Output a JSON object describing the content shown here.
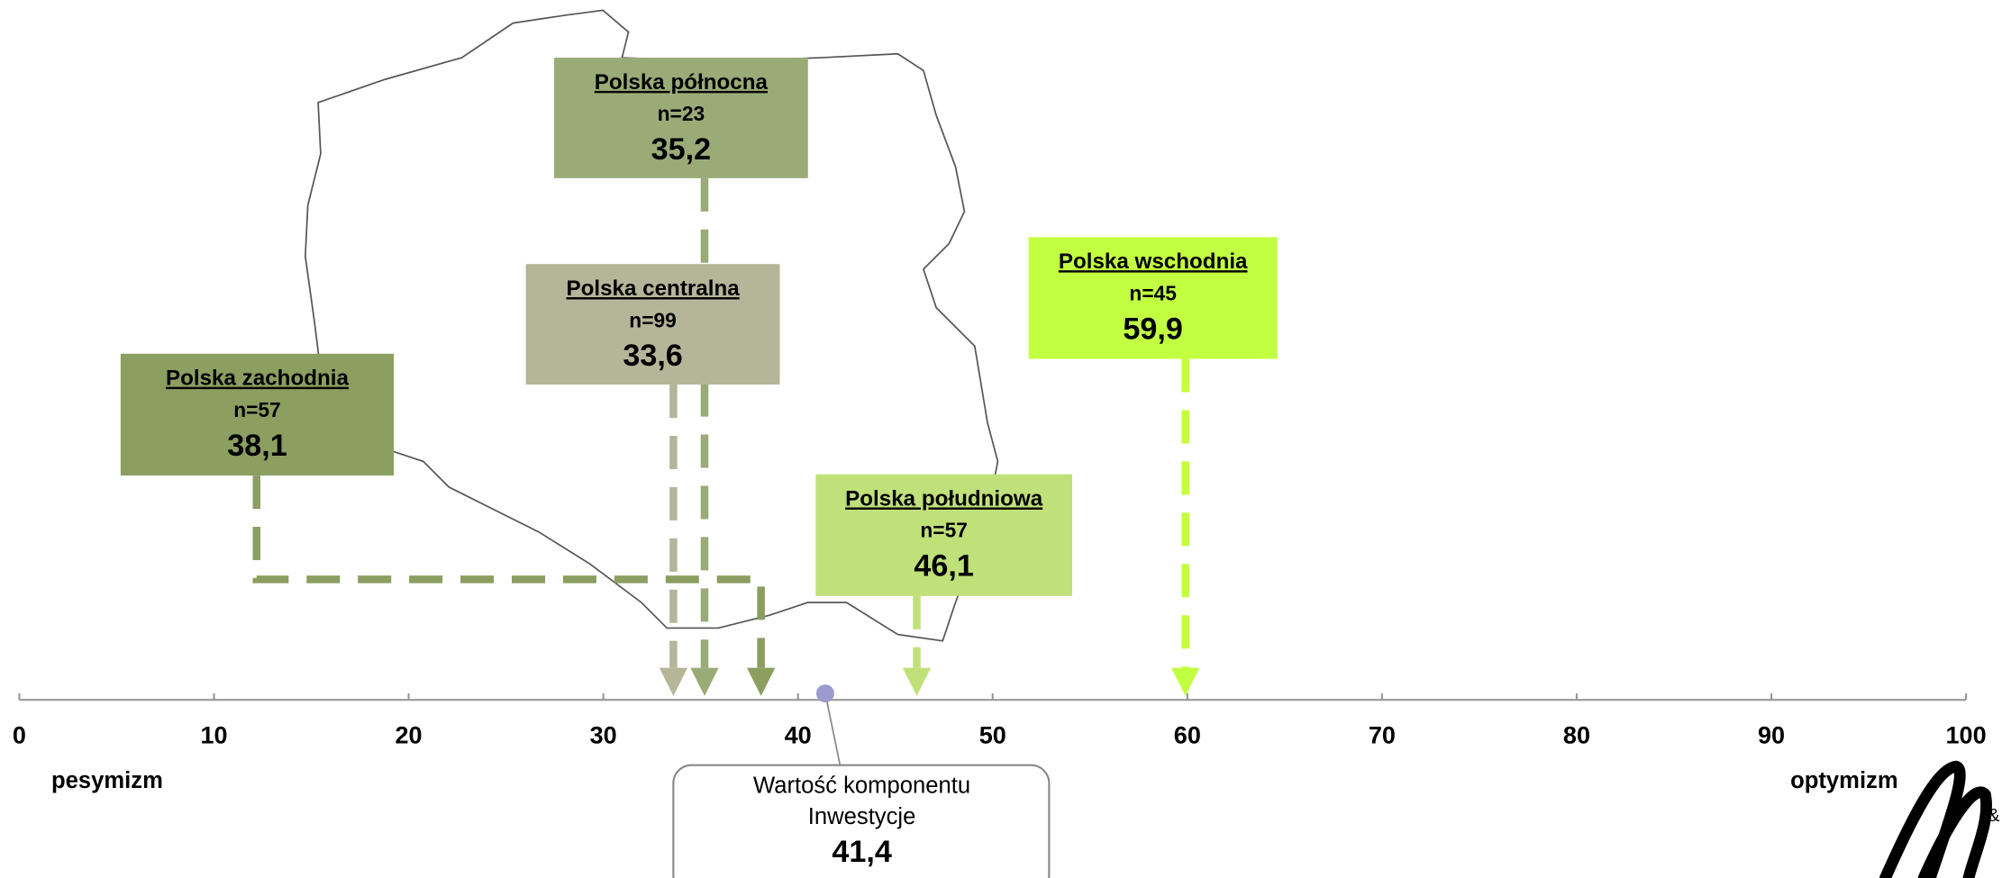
{
  "chart_data": {
    "type": "scale",
    "xlim": [
      0,
      100
    ],
    "xticks": [
      0,
      10,
      20,
      30,
      40,
      50,
      60,
      70,
      80,
      90,
      100
    ],
    "left_label": "pesymizm",
    "right_label": "optymizm",
    "series": [
      {
        "name": "Polska północna",
        "n": "n=23",
        "values": [
          35.2
        ],
        "value_labels": [
          "35,2"
        ],
        "color": "#9aab78"
      },
      {
        "name": "Polska centralna",
        "n": "n=99",
        "values": [
          33.6
        ],
        "value_labels": [
          "33,6"
        ],
        "color": "#b5b59a"
      },
      {
        "name": "Polska zachodnia",
        "n": "n=57",
        "values": [
          38.1
        ],
        "value_labels": [
          "38,1"
        ],
        "color": "#8c9e60"
      },
      {
        "name": "Polska południowa",
        "n": "n=57",
        "values": [
          46.1
        ],
        "value_labels": [
          "46,1"
        ],
        "color": "#c0e07a"
      },
      {
        "name": "Polska wschodnia",
        "n": "n=45",
        "values": [
          59.9
        ],
        "value_labels": [
          "59,9"
        ],
        "color": "#c2ff40"
      }
    ],
    "marker": {
      "label_lines": [
        "Wartość komponentu",
        "Inwestycje"
      ],
      "value": 41.4,
      "value_label": "41,4",
      "color": "#9b9bd0"
    }
  }
}
